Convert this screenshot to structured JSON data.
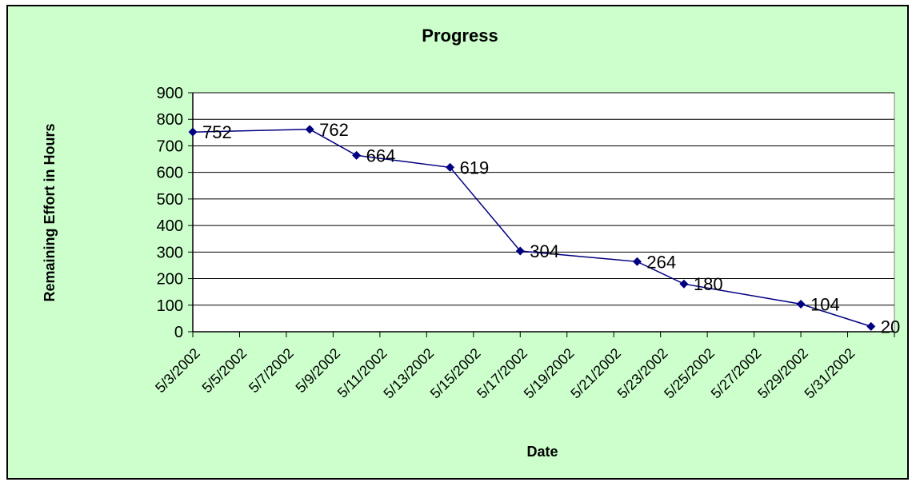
{
  "chart_data": {
    "type": "line",
    "title": "Progress",
    "xlabel": "Date",
    "ylabel": "Remaining Effort in Hours",
    "ylim": [
      0,
      900
    ],
    "y_ticks": [
      0,
      100,
      200,
      300,
      400,
      500,
      600,
      700,
      800,
      900
    ],
    "x_range": [
      "5/3/2002",
      "6/2/2002"
    ],
    "x_tick_labels": [
      "5/3/2002",
      "5/5/2002",
      "5/7/2002",
      "5/9/2002",
      "5/11/2002",
      "5/13/2002",
      "5/15/2002",
      "5/17/2002",
      "5/19/2002",
      "5/21/2002",
      "5/23/2002",
      "5/25/2002",
      "5/27/2002",
      "5/29/2002",
      "5/31/2002"
    ],
    "grid": "horizontal",
    "colors": {
      "series": "#000080",
      "background": "#ccffcc",
      "plot": "#ffffff"
    },
    "series": [
      {
        "points": [
          {
            "x": "5/3/2002",
            "y": 752,
            "label": "752"
          },
          {
            "x": "5/8/2002",
            "y": 762,
            "label": "762"
          },
          {
            "x": "5/10/2002",
            "y": 664,
            "label": "664"
          },
          {
            "x": "5/14/2002",
            "y": 619,
            "label": "619"
          },
          {
            "x": "5/17/2002",
            "y": 304,
            "label": "304"
          },
          {
            "x": "5/22/2002",
            "y": 264,
            "label": "264"
          },
          {
            "x": "5/24/2002",
            "y": 180,
            "label": "180"
          },
          {
            "x": "5/29/2002",
            "y": 104,
            "label": "104"
          },
          {
            "x": "6/1/2002",
            "y": 20,
            "label": "20"
          }
        ]
      }
    ]
  }
}
